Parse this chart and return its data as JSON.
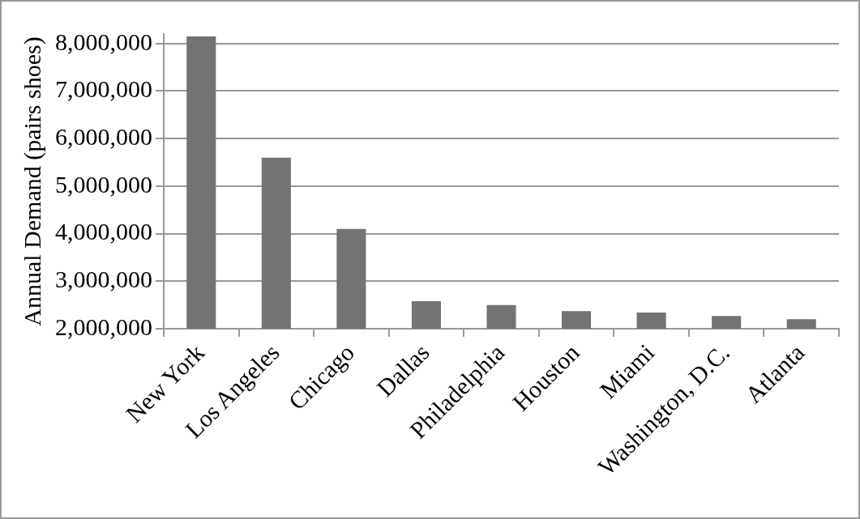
{
  "chart_data": {
    "type": "bar",
    "ylabel": "Annual Demand (pairs shoes)",
    "categories": [
      "New York",
      "Los Angeles",
      "Chicago",
      "Dallas",
      "Philadelphia",
      "Houston",
      "Miami",
      "Washington, D.C.",
      "Atlanta"
    ],
    "values": [
      8150000,
      5600000,
      4100000,
      2580000,
      2500000,
      2370000,
      2340000,
      2270000,
      2200000
    ],
    "color": "#737373",
    "ylim": [
      2000000,
      8200000
    ],
    "yticks": [
      {
        "value": 2000000,
        "label": "2,000,000"
      },
      {
        "value": 3000000,
        "label": "3,000,000"
      },
      {
        "value": 4000000,
        "label": "4,000,000"
      },
      {
        "value": 5000000,
        "label": "5,000,000"
      },
      {
        "value": 6000000,
        "label": "6,000,000"
      },
      {
        "value": 7000000,
        "label": "7,000,000"
      },
      {
        "value": 8000000,
        "label": "8,000,000"
      }
    ],
    "grid": "y",
    "legend": false
  }
}
